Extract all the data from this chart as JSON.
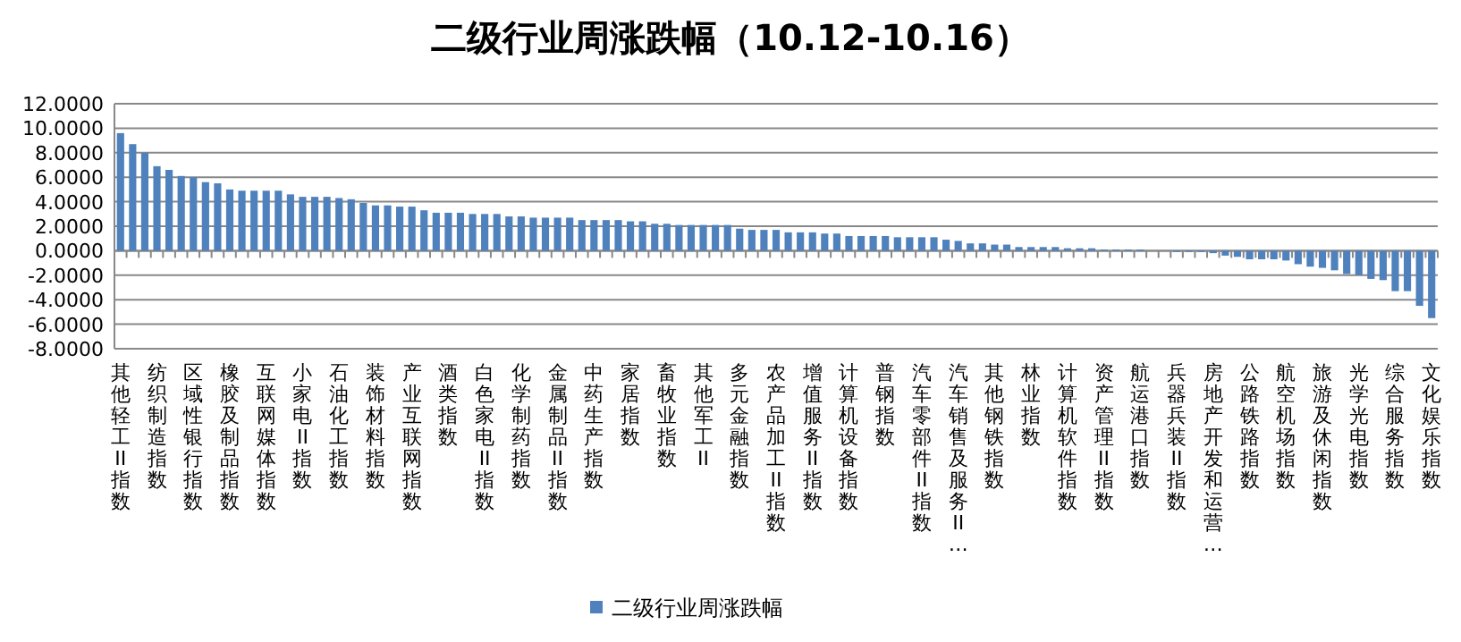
{
  "chart_data": {
    "type": "bar",
    "title": "二级行业周涨跌幅（10.12-10.16）",
    "categories": [
      "其他轻工II指数",
      null,
      null,
      "纺织制造指数",
      null,
      null,
      "区域性银行指数",
      null,
      null,
      "橡胶及制品指数",
      null,
      null,
      "互联网媒体指数",
      null,
      null,
      "小家电II指数",
      null,
      null,
      "石油化工指数",
      null,
      null,
      "装饰材料指数",
      null,
      null,
      "产业互联网指数",
      null,
      null,
      "酒类指数",
      null,
      null,
      "白色家电II指数",
      null,
      null,
      "化学制药指数",
      null,
      null,
      "金属制品II指数",
      null,
      null,
      "中药生产指数",
      null,
      null,
      "家居指数",
      null,
      null,
      "畜牧业指数",
      null,
      null,
      "其他军工II",
      null,
      null,
      "多元金融指数",
      null,
      null,
      "农产品加工II指数",
      null,
      null,
      "增值服务II指数",
      null,
      null,
      "计算机设备指数",
      null,
      null,
      "普钢指数",
      null,
      null,
      "汽车零部件II指数",
      null,
      null,
      "汽车销售及服务II…",
      null,
      null,
      "其他钢铁指数",
      null,
      null,
      "林业指数",
      null,
      null,
      "计算机软件指数",
      null,
      null,
      "资产管理II指数",
      null,
      null,
      "航运港口指数",
      null,
      null,
      "兵器兵装II指数",
      null,
      null,
      "房地产开发和运营…",
      null,
      null,
      "公路铁路指数",
      null,
      null,
      "航空机场指数",
      null,
      null,
      "旅游及休闲指数",
      null,
      null,
      "光学光电指数",
      null,
      null,
      "综合服务指数",
      null,
      null,
      "文化娱乐指数"
    ],
    "series": [
      {
        "name": "二级行业周涨跌幅",
        "color": "#4f81bd",
        "values": [
          9.6,
          8.7,
          8.0,
          6.9,
          6.6,
          6.1,
          6.0,
          5.6,
          5.5,
          5.0,
          4.9,
          4.9,
          4.9,
          4.9,
          4.6,
          4.4,
          4.4,
          4.4,
          4.3,
          4.2,
          3.9,
          3.7,
          3.7,
          3.6,
          3.6,
          3.3,
          3.1,
          3.1,
          3.1,
          3.0,
          3.0,
          3.0,
          2.8,
          2.8,
          2.7,
          2.7,
          2.7,
          2.7,
          2.5,
          2.5,
          2.5,
          2.5,
          2.4,
          2.4,
          2.2,
          2.2,
          2.1,
          2.1,
          2.1,
          2.1,
          2.1,
          1.8,
          1.7,
          1.7,
          1.7,
          1.5,
          1.5,
          1.5,
          1.4,
          1.4,
          1.2,
          1.2,
          1.2,
          1.2,
          1.1,
          1.1,
          1.1,
          1.1,
          0.9,
          0.8,
          0.6,
          0.6,
          0.5,
          0.5,
          0.3,
          0.3,
          0.3,
          0.3,
          0.2,
          0.2,
          0.2,
          0.1,
          0.1,
          0.1,
          0.1,
          0,
          0,
          -0.1,
          -0.1,
          -0.1,
          -0.2,
          -0.4,
          -0.5,
          -0.7,
          -0.7,
          -0.7,
          -0.8,
          -1.1,
          -1.3,
          -1.4,
          -1.6,
          -1.9,
          -2.0,
          -2.3,
          -2.4,
          -3.3,
          -3.3,
          -4.5,
          -5.5
        ]
      }
    ],
    "ylim": [
      -8,
      12
    ],
    "yticks": [
      {
        "value": -8,
        "label": "-8.0000"
      },
      {
        "value": -6,
        "label": "-6.0000"
      },
      {
        "value": -4,
        "label": "-4.0000"
      },
      {
        "value": -2,
        "label": "-2.0000"
      },
      {
        "value": 0,
        "label": "0.0000"
      },
      {
        "value": 2,
        "label": "2.0000"
      },
      {
        "value": 4,
        "label": "4.0000"
      },
      {
        "value": 6,
        "label": "6.0000"
      },
      {
        "value": 8,
        "label": "8.0000"
      },
      {
        "value": 10,
        "label": "10.0000"
      },
      {
        "value": 12,
        "label": "12.0000"
      }
    ],
    "grid": "y",
    "legend": "bottom"
  }
}
